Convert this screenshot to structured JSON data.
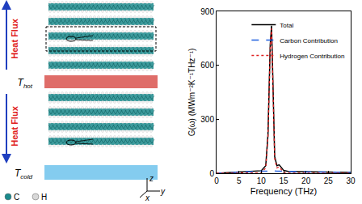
{
  "chart_data": {
    "type": "line",
    "x_label": "Frequency (THz)",
    "y_label": "G(ω) (MWm⁻²K⁻¹THz⁻¹)",
    "x": [
      0,
      2,
      4,
      6,
      8,
      10,
      11,
      11.5,
      12,
      12.3,
      12.6,
      13,
      13.5,
      14,
      15,
      16,
      18,
      20,
      22,
      24,
      26,
      28,
      30
    ],
    "series": [
      {
        "name": "Total",
        "color": "#000000",
        "line_style": "solid",
        "values": [
          0,
          3,
          6,
          8,
          10,
          14,
          42,
          213,
          714,
          820,
          514,
          93,
          42,
          47,
          16,
          10,
          9,
          8,
          8,
          7,
          6,
          5,
          5
        ]
      },
      {
        "name": "Carbon Contribution",
        "color": "#1f5fe0",
        "line_style": "dash",
        "values": [
          0,
          3,
          6,
          8,
          10,
          12,
          12,
          13,
          14,
          15,
          14,
          13,
          12,
          12,
          11,
          10,
          9,
          8,
          8,
          7,
          6,
          5,
          5
        ]
      },
      {
        "name": "Hydrogen Contribution",
        "color": "#e02020",
        "line_style": "dot",
        "values": [
          0,
          0,
          0,
          0,
          0,
          2,
          30,
          200,
          700,
          805,
          500,
          80,
          30,
          35,
          5,
          0,
          0,
          0,
          0,
          0,
          0,
          0,
          0
        ]
      }
    ],
    "xlim": [
      0,
      30
    ],
    "xticks": [
      0,
      5,
      10,
      15,
      20,
      25,
      30
    ],
    "ylim": [
      0,
      900
    ],
    "yticks": [
      0,
      300,
      600,
      900
    ],
    "grid": false,
    "legend": "top right"
  },
  "diagram": {
    "heat_flux_labels": [
      "Heat Flux",
      "Heat Flux"
    ],
    "hot_label": "T",
    "hot_sub": "hot",
    "cold_label": "T",
    "cold_sub": "cold",
    "axes": [
      "z",
      "y",
      "x"
    ],
    "atoms": [
      {
        "symbol": "C",
        "color": "#1b8a8c"
      },
      {
        "symbol": "H",
        "color": "#d8d8d8"
      }
    ]
  }
}
